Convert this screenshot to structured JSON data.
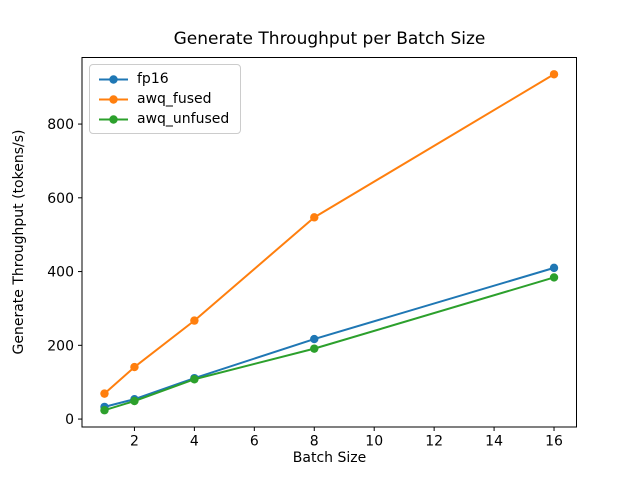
{
  "chart_data": {
    "type": "line",
    "title": "Generate Throughput per Batch Size",
    "xlabel": "Batch Size",
    "ylabel": "Generate Throughput (tokens/s)",
    "x": [
      1,
      2,
      4,
      8,
      16
    ],
    "series": [
      {
        "name": "fp16",
        "color": "#1f77b4",
        "values": [
          33,
          54,
          111,
          217,
          410
        ]
      },
      {
        "name": "awq_fused",
        "color": "#ff7f0e",
        "values": [
          69,
          141,
          267,
          547,
          935
        ]
      },
      {
        "name": "awq_unfused",
        "color": "#2ca02c",
        "values": [
          24,
          49,
          108,
          191,
          384
        ]
      }
    ],
    "x_ticks": [
      2,
      4,
      6,
      8,
      10,
      12,
      14,
      16
    ],
    "y_ticks": [
      0,
      200,
      400,
      600,
      800
    ],
    "xlim": [
      0.25,
      16.75
    ],
    "ylim": [
      -21.5,
      980.5
    ],
    "grid": false,
    "legend_position": "upper left",
    "marker": "circle",
    "line_width": 2,
    "marker_radius": 4.2,
    "axis_color": "#000000",
    "background_color": "#ffffff"
  }
}
